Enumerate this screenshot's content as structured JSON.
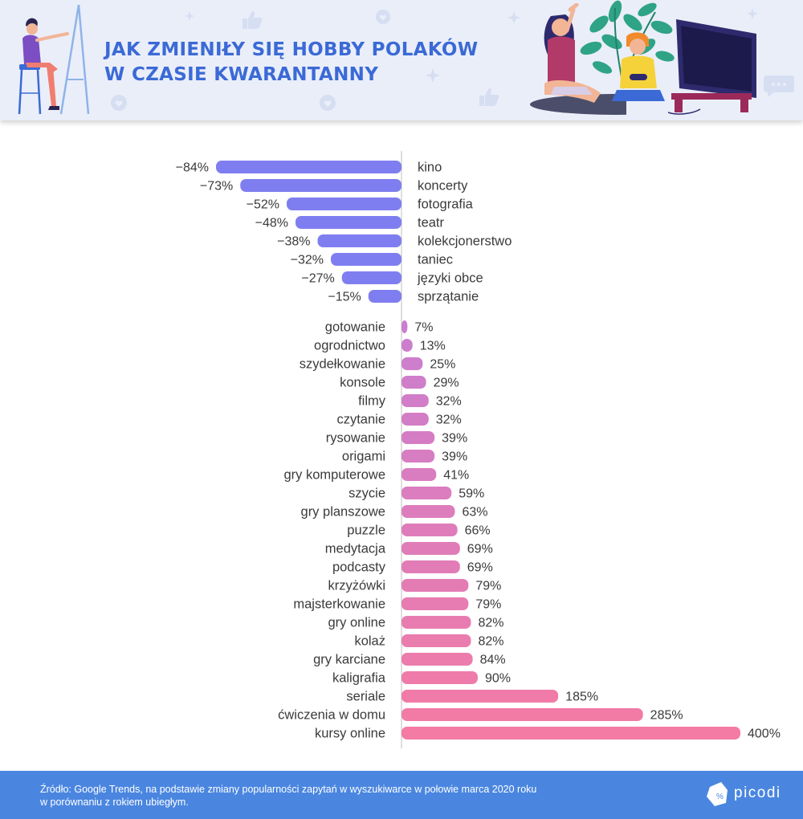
{
  "header": {
    "title_line1": "JAK ZMIENIŁY SIĘ HOBBY POLAKÓW",
    "title_line2": "W CZASIE KWARANTANNY"
  },
  "chart_data": {
    "type": "bar",
    "orientation": "horizontal-diverging",
    "categories": [
      "kino",
      "koncerty",
      "fotografia",
      "teatr",
      "kolekcjonerstwo",
      "taniec",
      "języki obce",
      "sprzątanie",
      "gotowanie",
      "ogrodnictwo",
      "szydełkowanie",
      "konsole",
      "filmy",
      "czytanie",
      "rysowanie",
      "origami",
      "gry komputerowe",
      "szycie",
      "gry planszowe",
      "puzzle",
      "medytacja",
      "podcasty",
      "krzyżówki",
      "majsterkowanie",
      "gry online",
      "kolaż",
      "gry karciane",
      "kaligrafia",
      "seriale",
      "ćwiczenia w domu",
      "kursy online"
    ],
    "values": [
      -84,
      -73,
      -52,
      -48,
      -38,
      -32,
      -27,
      -15,
      7,
      13,
      25,
      29,
      32,
      32,
      39,
      39,
      41,
      59,
      63,
      66,
      69,
      69,
      79,
      79,
      82,
      82,
      84,
      90,
      185,
      285,
      400
    ],
    "value_labels": [
      "−84%",
      "−73%",
      "−52%",
      "−48%",
      "−38%",
      "−32%",
      "−27%",
      "−15%",
      "7%",
      "13%",
      "25%",
      "29%",
      "32%",
      "32%",
      "39%",
      "39%",
      "41%",
      "59%",
      "63%",
      "66%",
      "69%",
      "69%",
      "79%",
      "79%",
      "82%",
      "82%",
      "84%",
      "90%",
      "185%",
      "285%",
      "400%"
    ],
    "colors": {
      "negative": "#7f7ef0",
      "positive_start": "#c97ed0",
      "positive_end": "#f47ba4",
      "axis": "#bdbdbd",
      "text": "#3a3a3a"
    }
  },
  "footer": {
    "source_line1": "Źródło: Google Trends, na podstawie zmiany popularności zapytań w wyszukiwarce w połowie marca 2020 roku",
    "source_line2": "w porównaniu z rokiem ubiegłym.",
    "brand": "picodi"
  },
  "icons": [
    "painter-illustration",
    "girl-phone-illustration",
    "boy-gamepad-illustration",
    "tv-illustration",
    "plant-illustration",
    "thumb-up-icon",
    "heart-icon",
    "star-icon",
    "chat-bubble-icon"
  ]
}
